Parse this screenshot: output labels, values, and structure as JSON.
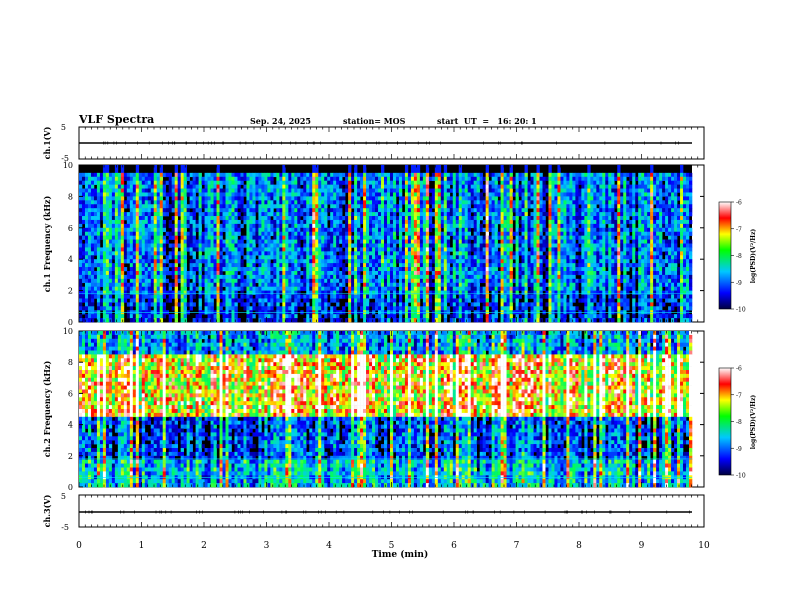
{
  "header": {
    "title": "VLF Spectra",
    "date": "Sep. 24, 2025",
    "station": "station= MOS",
    "start": "start  UT  =   16: 20: 1"
  },
  "chart_data": [
    {
      "type": "line",
      "name": "ch1-voltage",
      "ylabel": "ch.1(V)",
      "ylim": [
        -5,
        5
      ],
      "yticks": [
        "5",
        "-5"
      ],
      "baseline": 0
    },
    {
      "type": "heatmap",
      "name": "ch1-spectrogram",
      "ylabel": "ch.1 Frequency (kHz)",
      "ylim": [
        0,
        10
      ],
      "yticks": [
        "0",
        "2",
        "4",
        "6",
        "8",
        "10"
      ],
      "colorbar": {
        "label": "log(PSD)(V²/Hz)",
        "range": [
          -10,
          -6
        ],
        "ticks": [
          "-6",
          "-7",
          "-8",
          "-9",
          "-10"
        ]
      },
      "bands": [
        {
          "from": 0,
          "to": 1.8,
          "level": 0.25
        },
        {
          "from": 1.8,
          "to": 9.6,
          "level": 0.35
        }
      ]
    },
    {
      "type": "heatmap",
      "name": "ch2-spectrogram",
      "ylabel": "ch.2 Frequency (kHz)",
      "ylim": [
        0,
        10
      ],
      "yticks": [
        "0",
        "2",
        "4",
        "6",
        "8",
        "10"
      ],
      "colorbar": {
        "label": "log(PSD)(V²/Hz)",
        "range": [
          -10,
          -6
        ],
        "ticks": [
          "-6",
          "-7",
          "-8",
          "-9",
          "-10"
        ]
      },
      "bands": [
        {
          "from": 0,
          "to": 1.8,
          "level": 0.45
        },
        {
          "from": 1.8,
          "to": 4.5,
          "level": 0.3
        },
        {
          "from": 4.5,
          "to": 8.5,
          "level": 0.8
        },
        {
          "from": 8.5,
          "to": 10,
          "level": 0.4
        }
      ]
    },
    {
      "type": "line",
      "name": "ch3-voltage",
      "ylabel": "ch.3(V)",
      "ylim": [
        -5,
        5
      ],
      "yticks": [
        "5",
        "-5"
      ],
      "baseline": 0
    }
  ],
  "xaxis": {
    "label": "Time  (min)",
    "xlim": [
      0,
      10
    ],
    "ticks": [
      "0",
      "1",
      "2",
      "3",
      "4",
      "5",
      "6",
      "7",
      "8",
      "9",
      "10"
    ]
  }
}
